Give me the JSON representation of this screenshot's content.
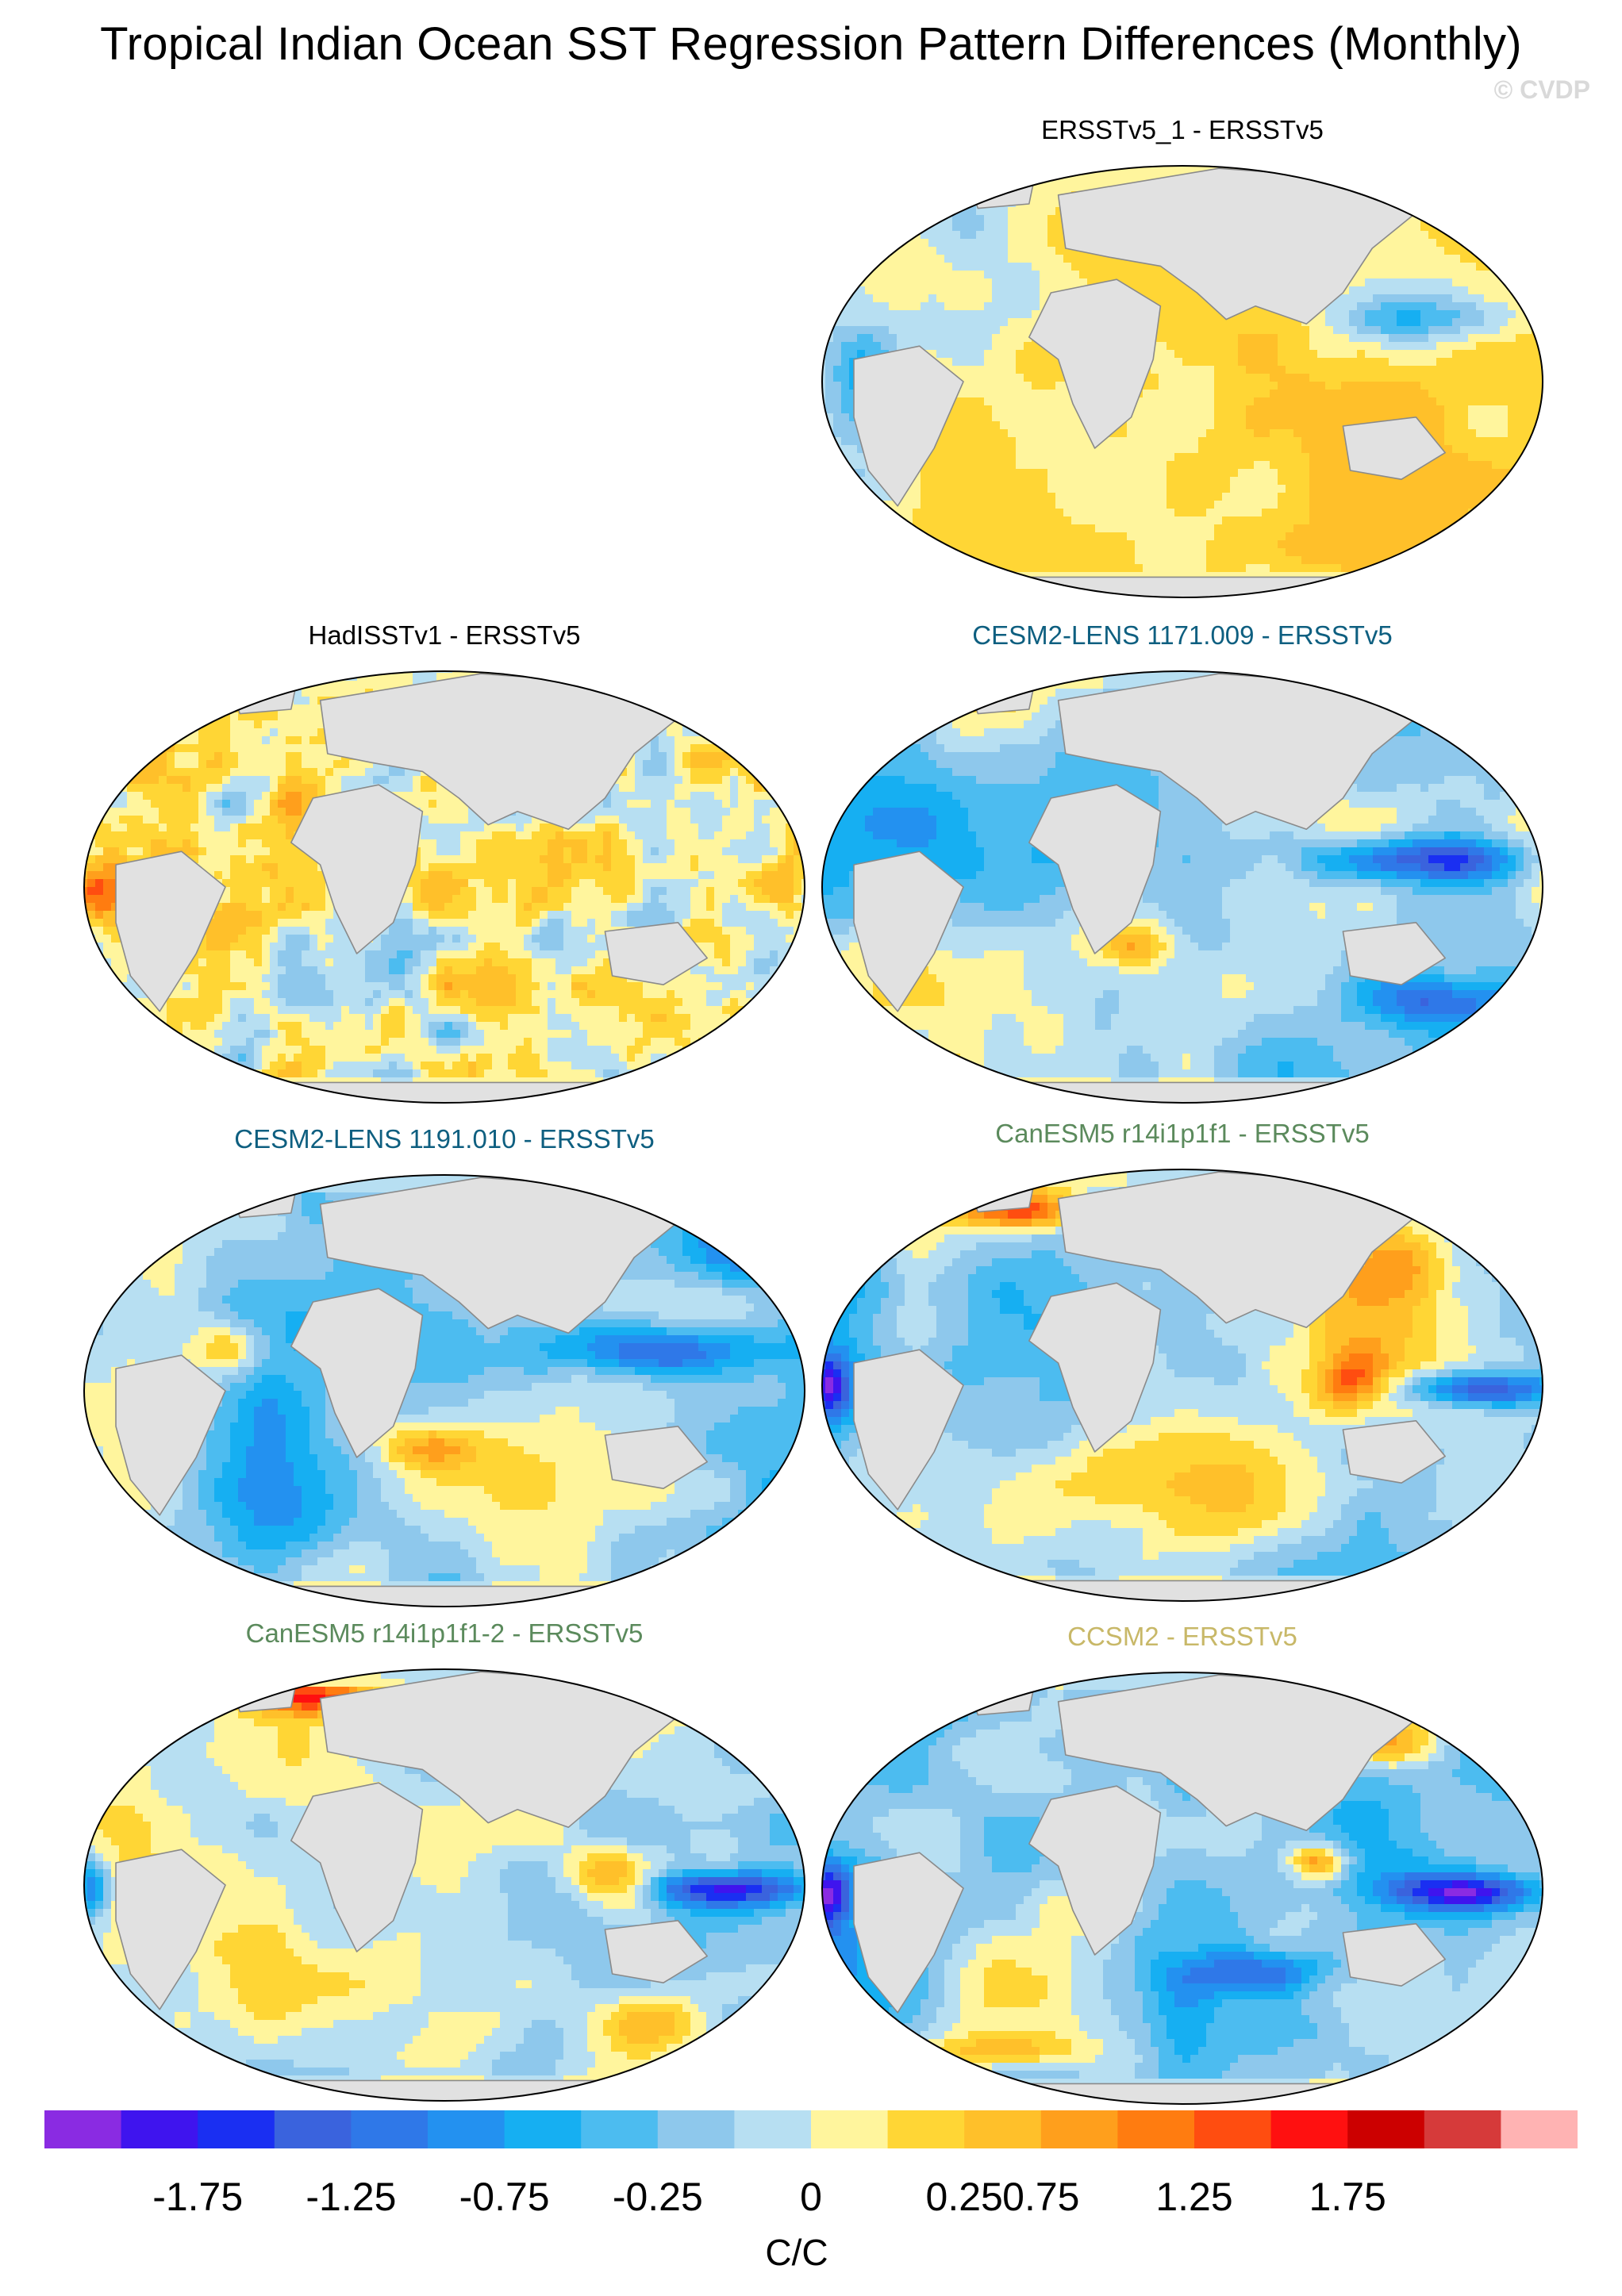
{
  "title": "Tropical Indian Ocean SST Regression Pattern Differences (Monthly)",
  "watermark": "© CVDP",
  "panels": [
    {
      "id": "p1",
      "title": "ERSSTv5_1 - ERSSTv5",
      "title_color": "#000000",
      "pattern": "obs-diff"
    },
    {
      "id": "p2",
      "title": "HadISSTv1 - ERSSTv5",
      "title_color": "#000000",
      "pattern": "noisy"
    },
    {
      "id": "p3",
      "title": "CESM2-LENS 1171.009 - ERSSTv5",
      "title_color": "#0e5f80",
      "pattern": "model-a"
    },
    {
      "id": "p4",
      "title": "CESM2-LENS 1191.010 - ERSSTv5",
      "title_color": "#0e5f80",
      "pattern": "model-b"
    },
    {
      "id": "p5",
      "title": "CanESM5 r14i1p1f1 - ERSSTv5",
      "title_color": "#5b8a5c",
      "pattern": "model-c"
    },
    {
      "id": "p6",
      "title": "CanESM5 r14i1p1f1-2 - ERSSTv5",
      "title_color": "#5b8a5c",
      "pattern": "model-c2"
    },
    {
      "id": "p7",
      "title": "CCSM2 - ERSSTv5",
      "title_color": "#c8b868",
      "pattern": "model-d"
    }
  ],
  "colorbar": {
    "units": "C/C",
    "tick_labels": [
      "-1.75",
      "-1.25",
      "-0.75",
      "-0.25",
      "0",
      "0.25",
      "0.75",
      "1.25",
      "1.75"
    ],
    "colors": [
      "#8a2be2",
      "#3f14ee",
      "#1a2ff2",
      "#3a63dd",
      "#2f78e8",
      "#2391f0",
      "#16aff2",
      "#4cbcf0",
      "#8ec8ec",
      "#b7dff2",
      "#fff59d",
      "#ffd635",
      "#ffc02a",
      "#ff9f1c",
      "#ff7c10",
      "#ff4d10",
      "#ff1010",
      "#cc0000",
      "#d63a3a",
      "#ffb3b3"
    ]
  }
}
